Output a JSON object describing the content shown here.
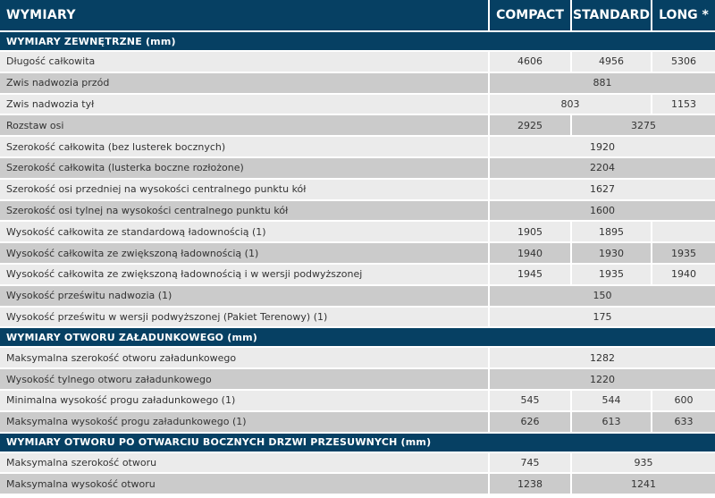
{
  "header": {
    "title": "WYMIARY",
    "columns": [
      "COMPACT",
      "STANDARD",
      "LONG *"
    ]
  },
  "sections": [
    {
      "title": "WYMIARY ZEWNĘTRZNE (mm)",
      "rows": [
        {
          "label": "Długość całkowita",
          "cells": [
            {
              "v": "4606",
              "span": 1
            },
            {
              "v": "4956",
              "span": 1
            },
            {
              "v": "5306",
              "span": 1
            }
          ]
        },
        {
          "label": "Zwis nadwozia przód",
          "cells": [
            {
              "v": "881",
              "span": 3
            }
          ]
        },
        {
          "label": "Zwis nadwozia tył",
          "cells": [
            {
              "v": "803",
              "span": 2
            },
            {
              "v": "1153",
              "span": 1
            }
          ]
        },
        {
          "label": "Rozstaw osi",
          "cells": [
            {
              "v": "2925",
              "span": 1
            },
            {
              "v": "3275",
              "span": 2
            }
          ]
        },
        {
          "label": "Szerokość całkowita (bez lusterek bocznych)",
          "cells": [
            {
              "v": "1920",
              "span": 3
            }
          ]
        },
        {
          "label": "Szerokość całkowita (lusterka boczne rozłożone)",
          "cells": [
            {
              "v": "2204",
              "span": 3
            }
          ]
        },
        {
          "label": "Szerokość osi przedniej na wysokości centralnego punktu kół",
          "cells": [
            {
              "v": "1627",
              "span": 3
            }
          ]
        },
        {
          "label": "Szerokość osi tylnej na wysokości centralnego punktu kół",
          "cells": [
            {
              "v": "1600",
              "span": 3
            }
          ]
        },
        {
          "label": "Wysokość całkowita ze standardową ładownością (1)",
          "cells": [
            {
              "v": "1905",
              "span": 1
            },
            {
              "v": "1895",
              "span": 1
            },
            {
              "v": "",
              "span": 1
            }
          ]
        },
        {
          "label": "Wysokość całkowita ze zwiększoną ładownością (1)",
          "cells": [
            {
              "v": "1940",
              "span": 1
            },
            {
              "v": "1930",
              "span": 1
            },
            {
              "v": "1935",
              "span": 1
            }
          ]
        },
        {
          "label": "Wysokość całkowita ze zwiększoną ładownością i w wersji podwyższonej",
          "cells": [
            {
              "v": "1945",
              "span": 1
            },
            {
              "v": "1935",
              "span": 1
            },
            {
              "v": "1940",
              "span": 1
            }
          ]
        },
        {
          "label": "Wysokość prześwitu nadwozia (1)",
          "cells": [
            {
              "v": "150",
              "span": 3
            }
          ]
        },
        {
          "label": "Wysokość prześwitu w wersji podwyższonej (Pakiet Terenowy) (1)",
          "cells": [
            {
              "v": "175",
              "span": 3
            }
          ]
        }
      ]
    },
    {
      "title": "WYMIARY OTWORU ZAŁADUNKOWEGO (mm)",
      "rows": [
        {
          "label": "Maksymalna szerokość otworu załadunkowego",
          "cells": [
            {
              "v": "1282",
              "span": 3
            }
          ]
        },
        {
          "label": "Wysokość tylnego otworu załadunkowego",
          "cells": [
            {
              "v": "1220",
              "span": 3
            }
          ]
        },
        {
          "label": "Minimalna wysokość progu załadunkowego (1)",
          "cells": [
            {
              "v": "545",
              "span": 1
            },
            {
              "v": "544",
              "span": 1
            },
            {
              "v": "600",
              "span": 1
            }
          ]
        },
        {
          "label": "Maksymalna wysokość progu załadunkowego (1)",
          "cells": [
            {
              "v": "626",
              "span": 1
            },
            {
              "v": "613",
              "span": 1
            },
            {
              "v": "633",
              "span": 1
            }
          ]
        }
      ]
    },
    {
      "title": "WYMIARY OTWORU PO OTWARCIU BOCZNYCH DRZWI PRZESUWNYCH (mm)",
      "rows": [
        {
          "label": "Maksymalna szerokość otworu",
          "cells": [
            {
              "v": "745",
              "span": 1
            },
            {
              "v": "935",
              "span": 2
            }
          ]
        },
        {
          "label": "Maksymalna wysokość otworu",
          "cells": [
            {
              "v": "1238",
              "span": 1
            },
            {
              "v": "1241",
              "span": 2
            }
          ]
        }
      ]
    }
  ]
}
